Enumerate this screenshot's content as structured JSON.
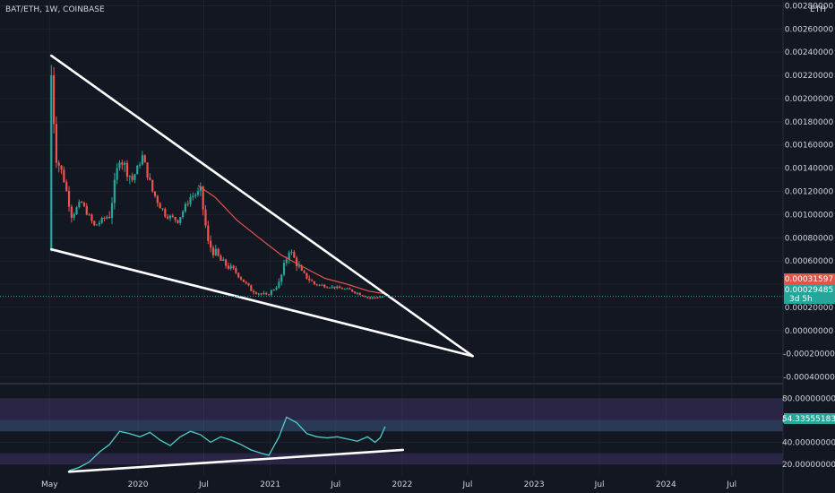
{
  "symbol_title": "BAT/ETH, 1W, COINBASE",
  "currency_label": "ETH",
  "price_tags": {
    "ma": {
      "value": "0.00031597",
      "color": "#e0544c"
    },
    "last": {
      "value": "0.00029485",
      "countdown": "3d 5h",
      "color": "#26a69a"
    },
    "rsi": {
      "value": "54.33555183",
      "color": "#26a69a"
    }
  },
  "colors": {
    "background": "#131722",
    "grid": "#1e222d",
    "up": "#26a69a",
    "down": "#ef5350",
    "ma": "#e0544c",
    "rsi_line": "#4dd0c8",
    "trendline": "#ffffff",
    "rsi_band": "#7e57c2"
  },
  "chart_data": [
    {
      "type": "candlestick",
      "title": "BAT/ETH, 1W, COINBASE",
      "y_unit": "ETH",
      "y_ticks": [
        "0.00280000",
        "0.00260000",
        "0.00240000",
        "0.00220000",
        "0.00200000",
        "0.00180000",
        "0.00160000",
        "0.00140000",
        "0.00120000",
        "0.00100000",
        "0.00080000",
        "0.00060000",
        "0.00040000",
        "0.00020000",
        "0.00000000",
        "-0.00020000",
        "-0.00040000"
      ],
      "y_tick_values": [
        0.0028,
        0.0026,
        0.0024,
        0.0022,
        0.002,
        0.0018,
        0.0016,
        0.0014,
        0.0012,
        0.001,
        0.0008,
        0.0006,
        0.0004,
        0.0002,
        0,
        -0.0002,
        -0.0004
      ],
      "ylim": [
        -0.00045,
        0.00285
      ],
      "x_ticks": [
        "May",
        "2020",
        "Jul",
        "2021",
        "Jul",
        "2022",
        "Jul",
        "2023",
        "Jul",
        "2024",
        "Jul"
      ],
      "x_tick_dates": [
        "2019-05-01",
        "2020-01-01",
        "2020-07-01",
        "2021-01-01",
        "2021-07-01",
        "2022-01-01",
        "2022-07-01",
        "2023-01-01",
        "2023-07-01",
        "2024-01-01",
        "2024-07-01"
      ],
      "xlim": [
        "2018-12-15",
        "2024-11-20"
      ],
      "ohlc_keypoints": [
        [
          "2019-05-06",
          0.0007,
          0.0022,
          0.0007,
          0.0022
        ],
        [
          "2019-05-20",
          0.0021,
          0.0021,
          0.0014,
          0.0015
        ],
        [
          "2019-06-10",
          0.0015,
          0.0015,
          0.0012,
          0.0013
        ],
        [
          "2019-07-01",
          0.0013,
          0.00135,
          0.00095,
          0.001
        ],
        [
          "2019-07-29",
          0.001,
          0.0012,
          0.00095,
          0.0011
        ],
        [
          "2019-09-02",
          0.0011,
          0.00115,
          0.00088,
          0.0009
        ],
        [
          "2019-10-14",
          0.0009,
          0.0011,
          0.00087,
          0.001
        ],
        [
          "2019-11-11",
          0.001,
          0.0016,
          0.001,
          0.0015
        ],
        [
          "2019-12-16",
          0.0015,
          0.0015,
          0.0012,
          0.0013
        ],
        [
          "2020-01-13",
          0.0013,
          0.0016,
          0.0013,
          0.0015
        ],
        [
          "2020-02-10",
          0.0015,
          0.0015,
          0.0011,
          0.0012
        ],
        [
          "2020-03-16",
          0.0012,
          0.0012,
          0.00095,
          0.001
        ],
        [
          "2020-04-20",
          0.001,
          0.0011,
          0.0009,
          0.00095
        ],
        [
          "2020-05-25",
          0.00095,
          0.00125,
          0.00095,
          0.00115
        ],
        [
          "2020-06-22",
          0.00115,
          0.00125,
          0.00105,
          0.0012
        ],
        [
          "2020-07-13",
          0.0012,
          0.0012,
          0.0007,
          0.00075
        ],
        [
          "2020-08-17",
          0.00075,
          0.0009,
          0.00055,
          0.0006
        ],
        [
          "2020-09-28",
          0.0006,
          0.00065,
          0.00045,
          0.0005
        ],
        [
          "2020-11-09",
          0.0005,
          0.0005,
          0.0003,
          0.00035
        ],
        [
          "2020-12-21",
          0.00035,
          0.0004,
          0.00028,
          0.0003
        ],
        [
          "2021-01-25",
          0.0003,
          0.00045,
          0.0003,
          0.0004
        ],
        [
          "2021-02-22",
          0.0004,
          0.0008,
          0.0004,
          0.0007
        ],
        [
          "2021-03-29",
          0.0007,
          0.0007,
          0.00045,
          0.0005
        ],
        [
          "2021-05-03",
          0.0005,
          0.0005,
          0.00035,
          0.0004
        ],
        [
          "2021-06-14",
          0.0004,
          0.00045,
          0.00033,
          0.00038
        ],
        [
          "2021-08-09",
          0.00038,
          0.00042,
          0.00032,
          0.00035
        ],
        [
          "2021-10-04",
          0.00035,
          0.00038,
          0.00025,
          0.00028
        ],
        [
          "2021-11-15",
          0.00028,
          0.00036,
          0.00027,
          0.00029485
        ]
      ],
      "moving_average": [
        [
          "2020-06-15",
          0.00125
        ],
        [
          "2020-08-01",
          0.00115
        ],
        [
          "2020-10-01",
          0.00095
        ],
        [
          "2020-12-01",
          0.0008
        ],
        [
          "2021-02-01",
          0.00065
        ],
        [
          "2021-04-01",
          0.00055
        ],
        [
          "2021-06-01",
          0.00045
        ],
        [
          "2021-08-01",
          0.0004
        ],
        [
          "2021-10-01",
          0.00034
        ],
        [
          "2021-11-15",
          0.00031597
        ]
      ],
      "trendlines": [
        {
          "from": [
            "2019-05-06",
            0.00237
          ],
          "to": [
            "2022-07-15",
            -0.00022
          ]
        },
        {
          "from": [
            "2019-05-06",
            0.0007
          ],
          "to": [
            "2022-07-15",
            -0.00022
          ]
        }
      ],
      "last_price": 0.00029485,
      "moving_average_last": 0.00031597
    },
    {
      "type": "line",
      "panel": "oscillator",
      "y_ticks": [
        "80.00000000",
        "60.00000000",
        "40.00000000",
        "20.00000000"
      ],
      "y_tick_values": [
        80,
        60,
        40,
        20
      ],
      "ylim": [
        10,
        92
      ],
      "bands": [
        [
          70,
          80
        ],
        [
          50,
          70
        ],
        [
          20,
          30
        ]
      ],
      "series": [
        {
          "points": [
            [
              "2019-06-24",
              14
            ],
            [
              "2019-07-22",
              17
            ],
            [
              "2019-08-19",
              22
            ],
            [
              "2019-09-16",
              31
            ],
            [
              "2019-10-14",
              38
            ],
            [
              "2019-11-11",
              50
            ],
            [
              "2019-12-09",
              48
            ],
            [
              "2020-01-06",
              45
            ],
            [
              "2020-02-03",
              49
            ],
            [
              "2020-03-02",
              42
            ],
            [
              "2020-03-30",
              37
            ],
            [
              "2020-04-27",
              45
            ],
            [
              "2020-05-25",
              50
            ],
            [
              "2020-06-22",
              47
            ],
            [
              "2020-07-20",
              40
            ],
            [
              "2020-08-17",
              45
            ],
            [
              "2020-09-14",
              42
            ],
            [
              "2020-10-12",
              38
            ],
            [
              "2020-11-09",
              33
            ],
            [
              "2020-12-07",
              30
            ],
            [
              "2020-12-28",
              28
            ],
            [
              "2021-01-25",
              45
            ],
            [
              "2021-02-15",
              63
            ],
            [
              "2021-03-15",
              58
            ],
            [
              "2021-04-12",
              48
            ],
            [
              "2021-05-10",
              45
            ],
            [
              "2021-06-07",
              44
            ],
            [
              "2021-07-05",
              45
            ],
            [
              "2021-08-02",
              43
            ],
            [
              "2021-08-30",
              41
            ],
            [
              "2021-09-27",
              45
            ],
            [
              "2021-10-18",
              40
            ],
            [
              "2021-11-01",
              44
            ],
            [
              "2021-11-15",
              54.33555183
            ]
          ]
        }
      ],
      "trendlines": [
        {
          "from": [
            "2019-06-24",
            13
          ],
          "to": [
            "2022-01-03",
            33
          ]
        }
      ],
      "last_value": 54.33555183
    }
  ]
}
